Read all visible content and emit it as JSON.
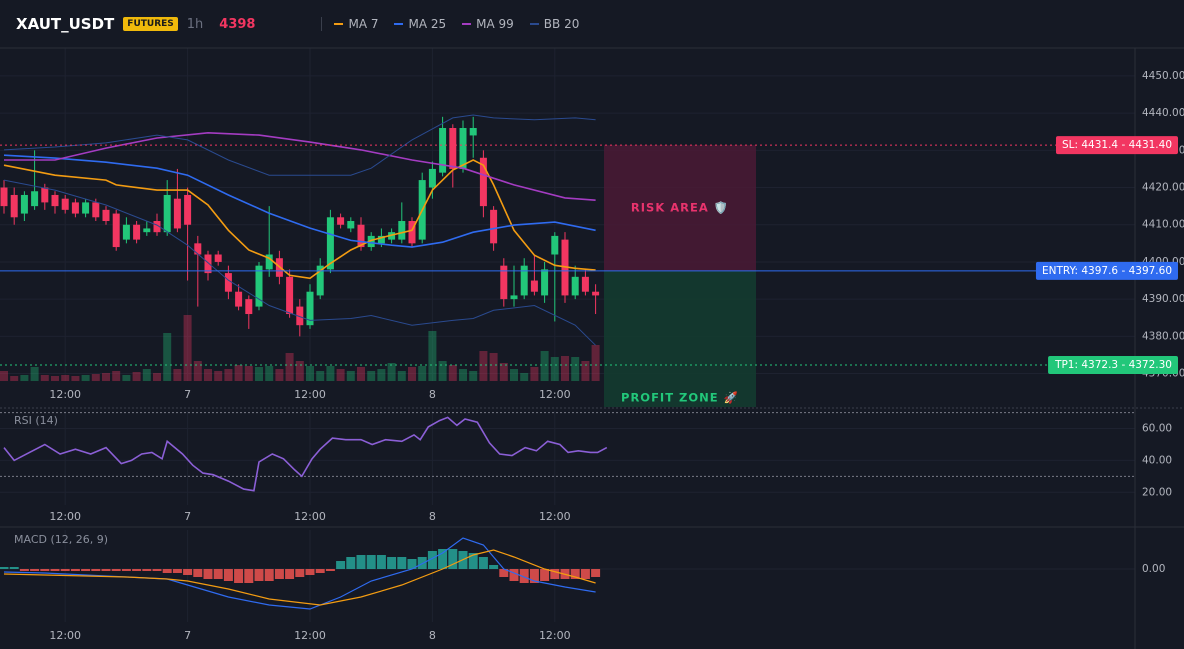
{
  "header": {
    "symbol": "XAUT_USDT",
    "badge": "FUTURES",
    "interval": "1h",
    "price": "4398"
  },
  "chart_data": [
    {
      "type": "candlestick",
      "categories": [
        null,
        null,
        null,
        null,
        null,
        null,
        "12:00",
        null,
        null,
        null,
        null,
        null,
        null,
        null,
        null,
        null,
        null,
        null,
        "7",
        null,
        null,
        null,
        null,
        null,
        null,
        null,
        null,
        null,
        null,
        null,
        "12:00",
        null,
        null,
        null,
        null,
        null,
        null,
        null,
        null,
        null,
        null,
        null,
        "8",
        null,
        null,
        null,
        null,
        null,
        null,
        null,
        null,
        null,
        null,
        null,
        "12:00",
        null,
        null,
        null,
        null
      ],
      "open": [
        4420,
        4418,
        4413,
        4415,
        4420,
        4418,
        4417,
        4416,
        4413,
        4416,
        4414,
        4413,
        4406,
        4410,
        4408,
        4411,
        4408,
        4417,
        4418,
        4405,
        4402,
        4402,
        4397,
        4392,
        4390,
        4388,
        4398,
        4401,
        4396,
        4388,
        4383,
        4391,
        4398,
        4412,
        4409,
        4410,
        4404,
        4405,
        4406,
        4406,
        4411,
        4406,
        4420,
        4424,
        4436,
        4425,
        4434,
        4428,
        4414,
        4399,
        4390,
        4391,
        4395,
        4391,
        4402,
        4406,
        4391,
        4396,
        4392
      ],
      "high": [
        4422,
        4420,
        4419,
        4430,
        4421,
        4419,
        4418,
        4417,
        4417,
        4417,
        4415,
        4414,
        4412,
        4411,
        4411,
        4413,
        4422,
        4425,
        4420,
        4407,
        4403,
        4403,
        4399,
        4394,
        4391,
        4400,
        4415,
        4403,
        4398,
        4390,
        4394,
        4401,
        4414,
        4413,
        4412,
        4412,
        4408,
        4409,
        4409,
        4416,
        4412,
        4424,
        4427,
        4439,
        4437,
        4438,
        4439,
        4430,
        4415,
        4401,
        4399,
        4401,
        4402,
        4400,
        4408,
        4408,
        4399,
        4398,
        4394
      ],
      "low": [
        4413,
        4410,
        4411,
        4414,
        4414,
        4413,
        4413,
        4412,
        4412,
        4411,
        4410,
        4403,
        4405,
        4405,
        4407,
        4407,
        4407,
        4408,
        4395,
        4388,
        4395,
        4399,
        4390,
        4387,
        4382,
        4387,
        4396,
        4394,
        4385,
        4380,
        4382,
        4390,
        4397,
        4409,
        4408,
        4403,
        4403,
        4404,
        4405,
        4405,
        4404,
        4405,
        4417,
        4423,
        4420,
        4424,
        4428,
        4412,
        4403,
        4388,
        4388,
        4390,
        4391,
        4389,
        4384,
        4389,
        4390,
        4391,
        4386
      ],
      "close": [
        4415,
        4412,
        4418,
        4419,
        4416,
        4415,
        4414,
        4413,
        4416,
        4412,
        4411,
        4404,
        4410,
        4406,
        4409,
        4408,
        4418,
        4409,
        4410,
        4402,
        4397,
        4400,
        4392,
        4388,
        4386,
        4399,
        4402,
        4396,
        4386,
        4383,
        4392,
        4399,
        4412,
        4410,
        4411,
        4404,
        4407,
        4407,
        4408,
        4411,
        4405,
        4422,
        4425,
        4436,
        4425,
        4436,
        4436,
        4415,
        4405,
        4390,
        4391,
        4399,
        4392,
        4398,
        4407,
        4391,
        4396,
        4392,
        4391
      ],
      "volume": [
        10,
        5,
        6,
        14,
        6,
        5,
        6,
        5,
        6,
        7,
        8,
        10,
        6,
        9,
        12,
        8,
        48,
        12,
        66,
        20,
        12,
        10,
        12,
        16,
        15,
        14,
        15,
        12,
        28,
        20,
        15,
        10,
        15,
        12,
        10,
        14,
        10,
        12,
        18,
        10,
        14,
        15,
        50,
        20,
        16,
        12,
        10,
        30,
        28,
        18,
        12,
        8,
        14,
        30,
        24,
        25,
        24,
        20,
        36
      ],
      "up_color": "#22c77a",
      "down_color": "#f23661",
      "ylim": [
        4368,
        4457.5
      ],
      "yticks": [
        {
          "value": 4450,
          "label": "4450.00"
        },
        {
          "value": 4440,
          "label": "4440.00"
        },
        {
          "value": 4430,
          "label": "4430.00"
        },
        {
          "value": 4420,
          "label": "4420.00"
        },
        {
          "value": 4410,
          "label": "4410.00"
        },
        {
          "value": 4400,
          "label": "4400.00"
        },
        {
          "value": 4390,
          "label": "4390.00"
        },
        {
          "value": 4380,
          "label": "4380.00"
        },
        {
          "value": 4370,
          "label": "4370.00"
        }
      ],
      "series": [
        {
          "name": "MA 7",
          "color": "#f39c12",
          "x": [
            0,
            5,
            10,
            11,
            15,
            18,
            20,
            22,
            24,
            26,
            28,
            30,
            32,
            34,
            36,
            38,
            40,
            42,
            44,
            46,
            47,
            48,
            50,
            52,
            54,
            56,
            58
          ],
          "values": [
            4426,
            4423.3,
            4422,
            4420.7,
            4419.3,
            4419.3,
            4415.3,
            4408.5,
            4403.2,
            4401,
            4396.4,
            4395.6,
            4399.6,
            4403.2,
            4405.8,
            4407.2,
            4408.5,
            4419.3,
            4424.7,
            4427.4,
            4426,
            4420.7,
            4408.5,
            4401.8,
            4399.1,
            4398.3,
            4397.8
          ]
        },
        {
          "name": "MA 25",
          "color": "#2f6bf0",
          "x": [
            0,
            5,
            10,
            15,
            18,
            22,
            26,
            30,
            34,
            38,
            40,
            43,
            46,
            50,
            54,
            58
          ],
          "values": [
            4428.7,
            4427.9,
            4426.8,
            4425.2,
            4423.3,
            4418,
            4413.1,
            4409.1,
            4405.8,
            4404.5,
            4404,
            4405.3,
            4408,
            4409.9,
            4410.7,
            4408.5
          ]
        },
        {
          "name": "MA 99",
          "color": "#a43cc2",
          "x": [
            0,
            5,
            10,
            15,
            20,
            25,
            30,
            35,
            40,
            45,
            50,
            55,
            58
          ],
          "values": [
            4427.4,
            4427.4,
            4430.6,
            4433.3,
            4434.7,
            4434.1,
            4432.2,
            4430.1,
            4427.4,
            4425.2,
            4420.7,
            4417.2,
            4416.6
          ]
        },
        {
          "name": "BB 20",
          "color": "#2a4a8f",
          "x": [
            0,
            5,
            10,
            15,
            18,
            22,
            26,
            30,
            34,
            36,
            40,
            44,
            46,
            48,
            52,
            56,
            58
          ],
          "values": [
            4430.1,
            4430.9,
            4432,
            4434.1,
            4432.8,
            4427.4,
            4423.3,
            4423.3,
            4423.3,
            4425.2,
            4432.8,
            4438.7,
            4439.5,
            4438.7,
            4438.2,
            4438.7,
            4438.2
          ],
          "lower": [
            4422,
            4419.3,
            4415.3,
            4409.9,
            4404.5,
            4395.1,
            4388.3,
            4384.3,
            4384.8,
            4385.6,
            4383,
            4384.3,
            4384.8,
            4387,
            4388.3,
            4383,
            4377.6
          ]
        }
      ],
      "levels": [
        {
          "label": "SL: 4431.4 - 4431.40",
          "value": 4431.4,
          "color": "#f23661",
          "style": "dotted"
        },
        {
          "label": "ENTRY: 4397.6 - 4397.60",
          "value": 4397.6,
          "color": "#2f6bf0",
          "style": "solid"
        },
        {
          "label": "TP1: 4372.3 - 4372.30",
          "value": 4372.3,
          "color": "#22c77a",
          "style": "dotted"
        }
      ],
      "annotations": [
        {
          "text": "RISK AREA 🛡️",
          "color": "#e8336d"
        },
        {
          "text": "PROFIT ZONE 🚀",
          "color": "#22c77a"
        }
      ]
    },
    {
      "type": "line",
      "title": "RSI (14)",
      "color": "#8b5fd6",
      "x": [
        0,
        1,
        2.5,
        4,
        5.5,
        7,
        8.5,
        10,
        11.5,
        12.5,
        13.5,
        14.5,
        15.5,
        16,
        17.5,
        18.5,
        19.5,
        20.5,
        22,
        23.5,
        24.5,
        25,
        26.3,
        27.4,
        28.5,
        29.2,
        30.2,
        31,
        32.2,
        33.5,
        35,
        36.1,
        37.4,
        39,
        40.2,
        40.8,
        41.6,
        42.7,
        43.5,
        44.4,
        45.2,
        46.4,
        47.6,
        48.6,
        49.8,
        51.1,
        52.2,
        53.3,
        54.5,
        55.3,
        56.3,
        57.5,
        58.2,
        59.1
      ],
      "values": [
        48,
        40,
        45,
        50,
        44,
        47,
        44,
        48,
        38,
        40,
        44,
        45,
        41,
        52,
        44,
        37,
        32,
        31,
        27,
        22,
        21,
        39,
        44,
        41,
        34,
        30,
        41,
        47,
        54,
        53,
        53,
        50,
        53,
        52,
        56,
        53,
        61,
        65,
        67,
        62,
        66,
        64,
        51,
        44,
        43,
        48,
        46,
        52,
        50,
        45,
        46,
        45,
        45,
        48
      ],
      "ylim": [
        12,
        71
      ],
      "yticks": [
        {
          "value": 60,
          "label": "60.00"
        },
        {
          "value": 40,
          "label": "40.00"
        },
        {
          "value": 20,
          "label": "20.00"
        }
      ],
      "levels": [
        70,
        30
      ]
    },
    {
      "type": "macd",
      "title": "MACD (12, 26, 9)",
      "up_color": "#26a69a",
      "down_color": "#ef5350",
      "histogram": [
        0.5,
        0.5,
        -0.5,
        -0.5,
        -0.5,
        -0.5,
        -0.5,
        -0.5,
        -0.5,
        -0.5,
        -0.5,
        -0.5,
        -0.5,
        -0.5,
        -0.5,
        -0.5,
        -1,
        -1,
        -1.5,
        -2,
        -2.5,
        -2.5,
        -3,
        -3.5,
        -3.5,
        -3,
        -3,
        -2.5,
        -2.5,
        -2,
        -1.5,
        -1,
        -0.5,
        2,
        3,
        3.5,
        3.5,
        3.5,
        3,
        3,
        2.5,
        3,
        4.5,
        5,
        5,
        4.5,
        4,
        3,
        1,
        -2,
        -3,
        -3.5,
        -3.5,
        -3,
        -2.5,
        -2.5,
        -2.5,
        -2.5,
        -2
      ],
      "series": [
        {
          "color": "#2f6bf0",
          "x": [
            0,
            4,
            8,
            12,
            16,
            18,
            22,
            26,
            30,
            33,
            36,
            40,
            43,
            45,
            47,
            49,
            52,
            55,
            58
          ],
          "values": [
            -0.75,
            -1,
            -1.5,
            -2,
            -2.5,
            -4,
            -7,
            -9,
            -10,
            -7,
            -3,
            0,
            4,
            7.75,
            6,
            0,
            -3,
            -4.5,
            -5.75
          ]
        },
        {
          "color": "#f39c12",
          "x": [
            0,
            4,
            8,
            12,
            16,
            18,
            22,
            26,
            31,
            35,
            39,
            43,
            46,
            48,
            50,
            53,
            56,
            58
          ],
          "values": [
            -1.25,
            -1.5,
            -1.75,
            -2,
            -2.5,
            -3,
            -5,
            -7.5,
            -9,
            -7,
            -4,
            0,
            3.5,
            4.75,
            3,
            0,
            -2,
            -3.5
          ]
        }
      ],
      "ylim": [
        -13.25,
        9.75
      ],
      "yticks": [
        {
          "value": 0,
          "label": "0.00"
        }
      ]
    }
  ]
}
